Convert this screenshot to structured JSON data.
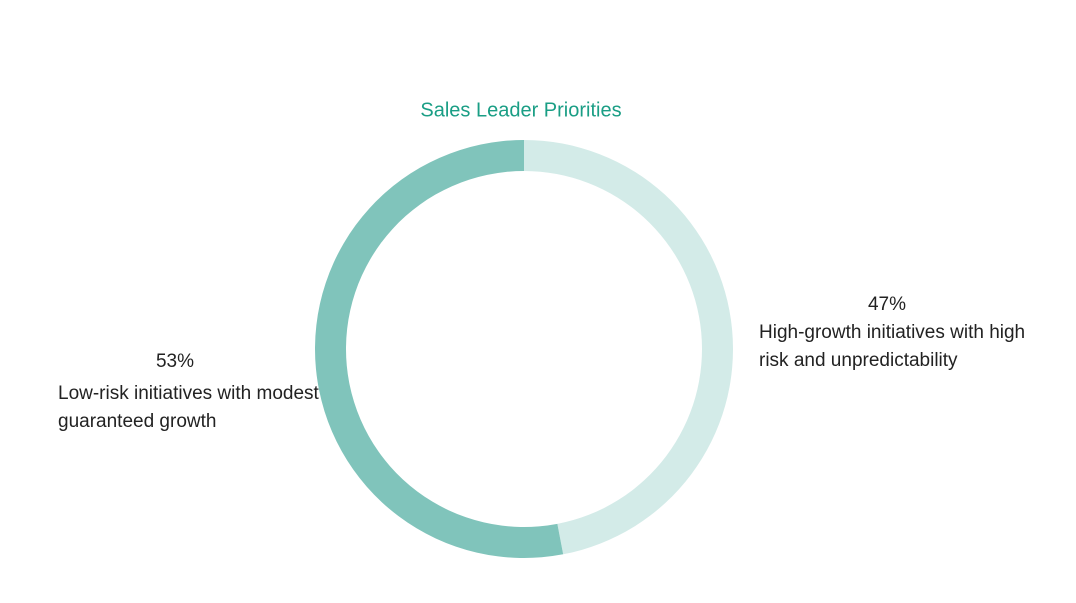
{
  "chart_data": {
    "type": "donut",
    "title": "Sales Leader Priorities",
    "categories": [
      "High-growth initiatives with high risk and unpredictability",
      "Low-risk initiatives with modest guaranteed growth"
    ],
    "values": [
      47,
      53
    ],
    "value_labels": [
      "47%",
      "53%"
    ],
    "colors": [
      "#d3ebe8",
      "#80c4bb"
    ],
    "title_color": "#1a9e85"
  }
}
